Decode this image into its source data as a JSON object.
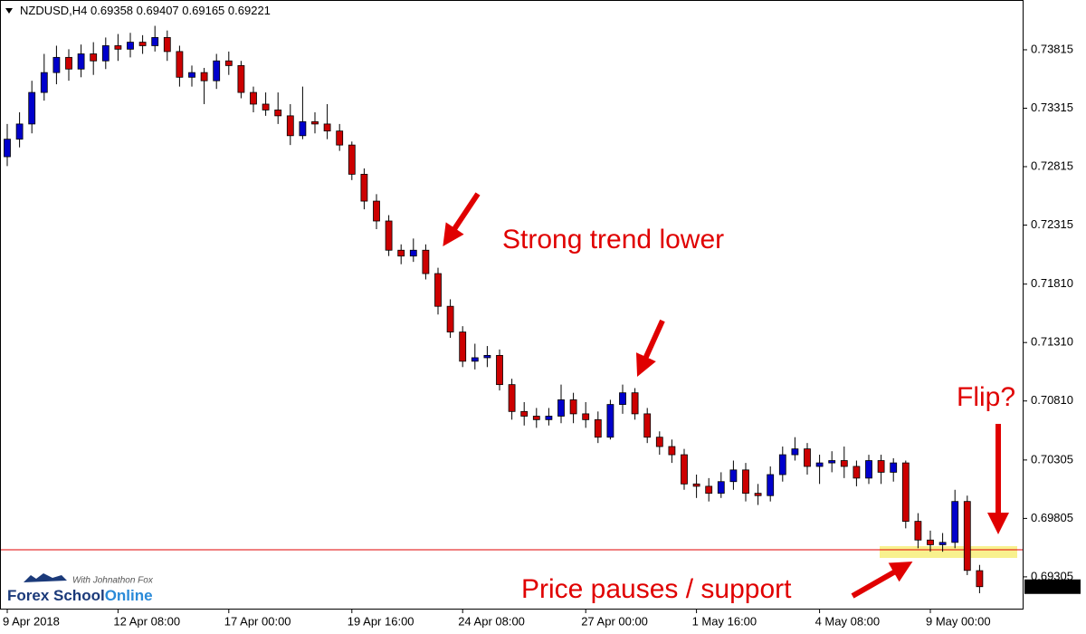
{
  "chart_data": {
    "type": "candlestick",
    "symbol": "NZDUSD,H4",
    "ylim": [
      0.69033,
      0.74241
    ],
    "yticks": [
      0.73815,
      0.73315,
      0.72815,
      0.72315,
      {
        "value": 0.7181,
        "label": "0.71810"
      },
      {
        "value": 0.7131,
        "label": "0.71310"
      },
      {
        "value": 0.7081,
        "label": "0.70810"
      },
      0.70305,
      0.69805,
      0.69305
    ],
    "categories": [
      "9 Apr 2018",
      null,
      null,
      null,
      null,
      null,
      null,
      null,
      null,
      "12 Apr 08:00",
      null,
      null,
      null,
      null,
      null,
      null,
      null,
      null,
      "17 Apr 00:00",
      null,
      null,
      null,
      null,
      null,
      null,
      null,
      null,
      null,
      "19 Apr 16:00",
      null,
      null,
      null,
      null,
      null,
      null,
      null,
      null,
      "24 Apr 08:00",
      null,
      null,
      null,
      null,
      null,
      null,
      null,
      null,
      null,
      "27 Apr 00:00",
      null,
      null,
      null,
      null,
      null,
      null,
      null,
      null,
      "1 May 16:00",
      null,
      null,
      null,
      null,
      null,
      null,
      null,
      null,
      null,
      "4 May 08:00",
      null,
      null,
      null,
      null,
      null,
      null,
      null,
      null,
      "9 May 00:00",
      null,
      null,
      null,
      null
    ],
    "open": [
      0.729,
      0.7305,
      0.7318,
      0.7345,
      0.7362,
      0.7375,
      0.7365,
      0.7378,
      0.7372,
      0.7385,
      0.7382,
      0.7388,
      0.7385,
      0.7392,
      0.738,
      0.7358,
      0.7362,
      0.7355,
      0.7372,
      0.7368,
      0.7345,
      0.7335,
      0.733,
      0.7325,
      0.7308,
      0.732,
      0.7318,
      0.7312,
      0.73,
      0.7275,
      0.7252,
      0.7235,
      0.721,
      0.7205,
      0.721,
      0.719,
      0.7162,
      0.714,
      0.7115,
      0.7118,
      0.712,
      0.7095,
      0.7072,
      0.7068,
      0.7065,
      0.7068,
      0.7082,
      0.707,
      0.7065,
      0.705,
      0.7078,
      0.7088,
      0.707,
      0.705,
      0.7042,
      0.7035,
      0.701,
      0.7008,
      0.7002,
      0.7012,
      0.7022,
      0.7002,
      0.7,
      0.7018,
      0.7035,
      0.704,
      0.7025,
      0.7028,
      0.703,
      0.7025,
      0.7015,
      0.703,
      0.702,
      0.7028,
      0.6978,
      0.6962,
      0.6958,
      0.696,
      0.6995,
      0.69358
    ],
    "high": [
      0.7318,
      0.7328,
      0.7355,
      0.7378,
      0.7385,
      0.7382,
      0.7386,
      0.7388,
      0.7392,
      0.7395,
      0.7396,
      0.7394,
      0.7402,
      0.7398,
      0.7385,
      0.7368,
      0.7366,
      0.7378,
      0.738,
      0.7372,
      0.735,
      0.7345,
      0.7345,
      0.7335,
      0.735,
      0.7328,
      0.7335,
      0.7318,
      0.7303,
      0.728,
      0.7258,
      0.724,
      0.7215,
      0.722,
      0.7215,
      0.7195,
      0.7168,
      0.7145,
      0.713,
      0.7128,
      0.7125,
      0.71,
      0.708,
      0.7075,
      0.7075,
      0.7095,
      0.7088,
      0.708,
      0.7072,
      0.7082,
      0.7095,
      0.7092,
      0.7075,
      0.7055,
      0.7048,
      0.704,
      0.7018,
      0.7015,
      0.702,
      0.703,
      0.7028,
      0.701,
      0.7025,
      0.7042,
      0.705,
      0.7045,
      0.7035,
      0.7038,
      0.7042,
      0.703,
      0.7035,
      0.7035,
      0.7032,
      0.703,
      0.6985,
      0.697,
      0.6968,
      0.7005,
      0.7,
      0.69407
    ],
    "low": [
      0.7282,
      0.7298,
      0.731,
      0.7338,
      0.7352,
      0.7355,
      0.7358,
      0.736,
      0.7365,
      0.7372,
      0.7375,
      0.7378,
      0.738,
      0.7372,
      0.735,
      0.735,
      0.7335,
      0.7348,
      0.736,
      0.734,
      0.7328,
      0.7325,
      0.7318,
      0.73,
      0.7305,
      0.731,
      0.7305,
      0.7295,
      0.727,
      0.7245,
      0.7228,
      0.7205,
      0.7198,
      0.72,
      0.7185,
      0.7155,
      0.7135,
      0.711,
      0.7108,
      0.711,
      0.709,
      0.7065,
      0.706,
      0.7058,
      0.706,
      0.7062,
      0.7062,
      0.7058,
      0.7045,
      0.7048,
      0.707,
      0.7065,
      0.7045,
      0.7035,
      0.7028,
      0.7005,
      0.6998,
      0.6995,
      0.6998,
      0.7005,
      0.6995,
      0.6992,
      0.6995,
      0.7012,
      0.703,
      0.7018,
      0.701,
      0.702,
      0.7015,
      0.7008,
      0.701,
      0.701,
      0.7012,
      0.6972,
      0.6955,
      0.6952,
      0.6952,
      0.6955,
      0.6932,
      0.69165
    ],
    "close": [
      0.7305,
      0.7318,
      0.7345,
      0.7362,
      0.7375,
      0.7365,
      0.7378,
      0.7372,
      0.7385,
      0.7382,
      0.7388,
      0.7385,
      0.7392,
      0.738,
      0.7358,
      0.7362,
      0.7355,
      0.7372,
      0.7368,
      0.7345,
      0.7335,
      0.733,
      0.7325,
      0.7308,
      0.732,
      0.7318,
      0.7312,
      0.73,
      0.7275,
      0.7252,
      0.7235,
      0.721,
      0.7205,
      0.721,
      0.719,
      0.7162,
      0.714,
      0.7115,
      0.7118,
      0.712,
      0.7095,
      0.7072,
      0.7068,
      0.7065,
      0.7068,
      0.7082,
      0.707,
      0.7065,
      0.705,
      0.7078,
      0.7088,
      0.707,
      0.705,
      0.7042,
      0.7035,
      0.701,
      0.7008,
      0.7002,
      0.7012,
      0.7022,
      0.7002,
      0.7,
      0.7018,
      0.7035,
      0.704,
      0.7025,
      0.7028,
      0.703,
      0.7025,
      0.7015,
      0.703,
      0.702,
      0.7028,
      0.6978,
      0.6962,
      0.6958,
      0.696,
      0.6995,
      0.6936,
      0.69221
    ],
    "up_color": "#0000cc",
    "down_color": "#cc0000",
    "wick_color": "#000000",
    "support_level": 0.69537,
    "support_color": "#e00000",
    "annotations": [
      "Strong trend lower",
      "Flip?",
      "Price pauses / support"
    ],
    "logo": {
      "tagline": "With Johnathon Fox",
      "brand": "Forex School",
      "brand_accent": "Online"
    }
  }
}
